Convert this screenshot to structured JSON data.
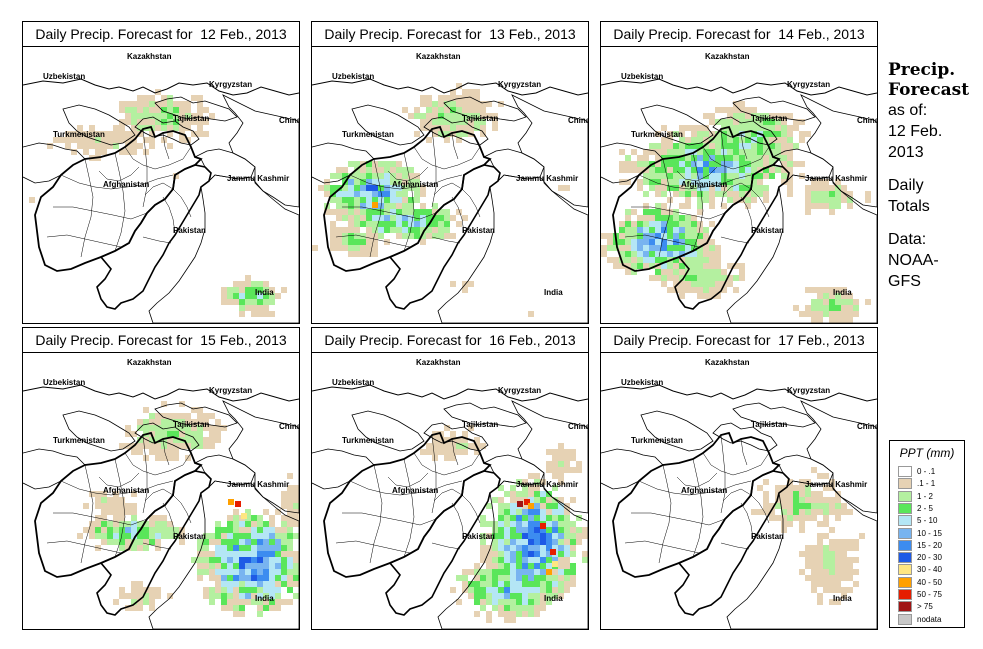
{
  "panels": [
    {
      "title": "Daily Precip. Forecast for  12 Feb., 2013",
      "day": 0
    },
    {
      "title": "Daily Precip. Forecast for  13 Feb., 2013",
      "day": 1
    },
    {
      "title": "Daily Precip. Forecast for  14 Feb., 2013",
      "day": 2
    },
    {
      "title": "Daily Precip. Forecast for  15 Feb., 2013",
      "day": 3
    },
    {
      "title": "Daily Precip. Forecast for  16 Feb., 2013",
      "day": 4
    },
    {
      "title": "Daily Precip. Forecast for  17 Feb., 2013",
      "day": 5
    }
  ],
  "map_labels": {
    "kazakhstan": "Kazakhstan",
    "uzbekistan": "Uzbekistan",
    "kyrgyzstan": "Kyrgyzstan",
    "tajikistan": "Tajikistan",
    "turkmenistan": "Turkmenistan",
    "china": "China",
    "afghanistan": "Afghanistan",
    "jammu_kashmir": "Jammu Kashmir",
    "pakistan": "Pakistan",
    "india": "India"
  },
  "side_info": {
    "title_line1": "Precip.",
    "title_line2": "Forecast",
    "asof": "as of:",
    "date_line1": "12 Feb.",
    "date_line2": "2013",
    "daily_line1": "Daily",
    "daily_line2": "Totals",
    "data_line1": "Data:",
    "data_line2": "NOAA-",
    "data_line3": "GFS"
  },
  "legend": {
    "title": "PPT (mm)",
    "items": [
      {
        "label": "0 - .1",
        "color": "#ffffff"
      },
      {
        "label": ".1 - 1",
        "color": "#e6d2b4"
      },
      {
        "label": "1 - 2",
        "color": "#b4f0a0"
      },
      {
        "label": "2 - 5",
        "color": "#5ae65a"
      },
      {
        "label": "5 - 10",
        "color": "#b4e6f5"
      },
      {
        "label": "10 - 15",
        "color": "#78b4f0"
      },
      {
        "label": "15 - 20",
        "color": "#3c8cf0"
      },
      {
        "label": "20 - 30",
        "color": "#1e5ae6"
      },
      {
        "label": "30 - 40",
        "color": "#ffe682"
      },
      {
        "label": "40 - 50",
        "color": "#ffa000"
      },
      {
        "label": "50 - 75",
        "color": "#e61e00"
      },
      {
        "label": "> 75",
        "color": "#a01414"
      },
      {
        "label": "nodata",
        "color": "#c8c8c8"
      }
    ]
  }
}
